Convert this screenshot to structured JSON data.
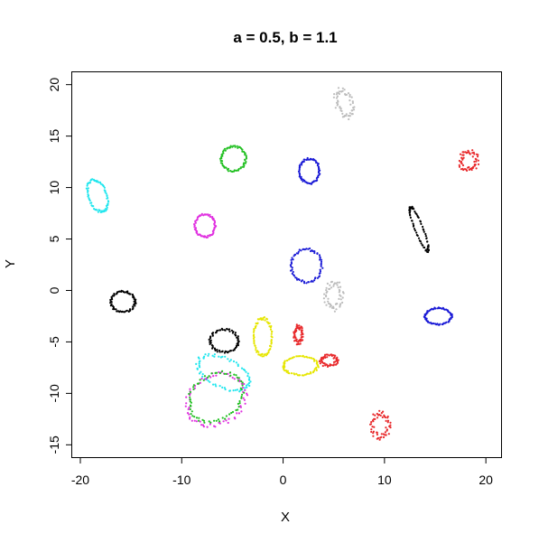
{
  "chart_data": {
    "type": "scatter",
    "title": "a = 0.5, b = 1.1",
    "xlabel": "X",
    "ylabel": "Y",
    "xlim": [
      -20.8,
      21.5
    ],
    "ylim": [
      -16.2,
      21.2
    ],
    "xticks": [
      -20,
      -10,
      0,
      10,
      20
    ],
    "yticks": [
      -15,
      -10,
      -5,
      0,
      5,
      10,
      15,
      20
    ],
    "grid": false,
    "legend": "none",
    "colors": {
      "black": "#000000",
      "red": "#e8282a",
      "green": "#22c022",
      "blue": "#1a1ad6",
      "cyan": "#22e6ee",
      "magenta": "#e030e0",
      "yellow": "#e6e600",
      "gray": "#bdbdbd"
    },
    "series": [
      {
        "color": "gray",
        "shape": "blob",
        "center": [
          6.0,
          18.2
        ],
        "rx": 0.9,
        "ry": 1.6,
        "rot": 20
      },
      {
        "color": "red",
        "shape": "blob",
        "center": [
          18.3,
          12.6
        ],
        "rx": 1.0,
        "ry": 1.1,
        "rot": 0
      },
      {
        "color": "green",
        "shape": "ring",
        "center": [
          -4.9,
          12.8
        ],
        "rx": 1.2,
        "ry": 1.2,
        "rot": 0
      },
      {
        "color": "blue",
        "shape": "ring",
        "center": [
          2.6,
          11.6
        ],
        "rx": 1.0,
        "ry": 1.2,
        "rot": 0
      },
      {
        "color": "cyan",
        "shape": "ring",
        "center": [
          -18.3,
          9.2
        ],
        "rx": 0.9,
        "ry": 1.6,
        "rot": 20
      },
      {
        "color": "black",
        "shape": "ring",
        "center": [
          13.4,
          6.0
        ],
        "rx": 0.4,
        "ry": 2.3,
        "rot": 22
      },
      {
        "color": "magenta",
        "shape": "ring",
        "center": [
          -7.7,
          6.3
        ],
        "rx": 1.0,
        "ry": 1.1,
        "rot": 0
      },
      {
        "color": "blue",
        "shape": "ring",
        "center": [
          2.3,
          2.4
        ],
        "rx": 1.5,
        "ry": 1.6,
        "rot": 0
      },
      {
        "color": "gray",
        "shape": "blob",
        "center": [
          5.0,
          -0.5
        ],
        "rx": 1.0,
        "ry": 1.5,
        "rot": 0
      },
      {
        "color": "black",
        "shape": "ring",
        "center": [
          -15.8,
          -1.1
        ],
        "rx": 1.2,
        "ry": 1.0,
        "rot": 0
      },
      {
        "color": "blue",
        "shape": "ring",
        "center": [
          15.3,
          -2.5
        ],
        "rx": 1.3,
        "ry": 0.8,
        "rot": 0
      },
      {
        "color": "red",
        "shape": "blob",
        "center": [
          1.5,
          -4.3
        ],
        "rx": 0.5,
        "ry": 1.0,
        "rot": 0
      },
      {
        "color": "black",
        "shape": "ring",
        "center": [
          -5.8,
          -4.9
        ],
        "rx": 1.4,
        "ry": 1.1,
        "rot": 0
      },
      {
        "color": "yellow",
        "shape": "ring",
        "center": [
          -2.0,
          -4.5
        ],
        "rx": 0.9,
        "ry": 1.8,
        "rot": 0
      },
      {
        "color": "red",
        "shape": "blob",
        "center": [
          4.5,
          -6.8
        ],
        "rx": 1.0,
        "ry": 0.6,
        "rot": 0
      },
      {
        "color": "yellow",
        "shape": "ring",
        "center": [
          1.7,
          -7.3
        ],
        "rx": 1.7,
        "ry": 0.9,
        "rot": 0
      },
      {
        "color": "cyan",
        "shape": "ring",
        "center": [
          -5.9,
          -8.0
        ],
        "rx": 2.7,
        "ry": 1.4,
        "rot": -25
      },
      {
        "color": "magenta",
        "shape": "ring",
        "center": [
          -6.6,
          -10.6
        ],
        "rx": 3.0,
        "ry": 2.4,
        "rot": 30
      },
      {
        "color": "green",
        "shape": "ring",
        "center": [
          -6.6,
          -10.4
        ],
        "rx": 2.8,
        "ry": 2.2,
        "rot": 30
      },
      {
        "color": "red",
        "shape": "blob",
        "center": [
          9.6,
          -13.1
        ],
        "rx": 1.0,
        "ry": 1.4,
        "rot": 0
      }
    ]
  }
}
